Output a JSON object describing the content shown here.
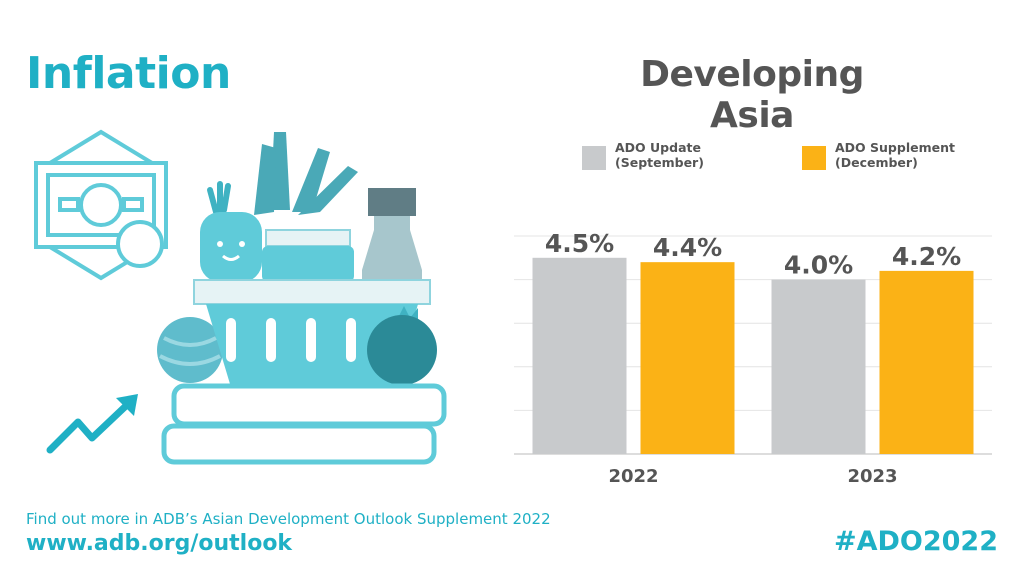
{
  "header": {
    "title": "Inflation",
    "chart_title": "Developing Asia"
  },
  "footer": {
    "note": "Find out more in ADB’s Asian Development Outlook Supplement 2022",
    "url": "www.adb.org/outlook",
    "hashtag": "#ADO2022"
  },
  "colors": {
    "accent": "#1fb0c5",
    "update": "#c8cacc",
    "supplement": "#fbb216",
    "text": "#555555"
  },
  "chart_data": {
    "type": "bar",
    "title": "Developing Asia",
    "categories": [
      "2022",
      "2023"
    ],
    "series": [
      {
        "name": "ADO Update\n(September)",
        "values": [
          4.5,
          4.0
        ],
        "labels": [
          "4.5%",
          "4.0%"
        ],
        "color": "#c8cacc"
      },
      {
        "name": "ADO Supplement\n(December)",
        "values": [
          4.4,
          4.2
        ],
        "labels": [
          "4.4%",
          "4.2%"
        ],
        "color": "#fbb216"
      }
    ],
    "ylim": [
      0,
      5
    ],
    "grid": true,
    "legend": "top"
  }
}
